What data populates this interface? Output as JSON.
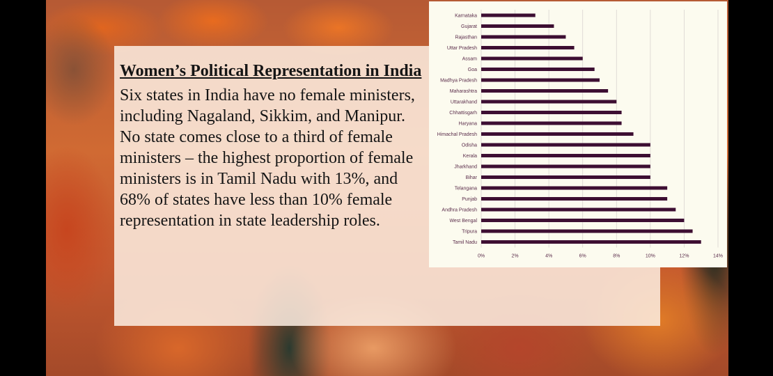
{
  "slide": {
    "title": "Women’s Political Representation in India",
    "body": "Six states in India have no female ministers, including Nagaland, Sikkim, and Manipur. No state comes close to a third of female ministers – the highest proportion of female ministers is in Tamil Nadu with 13%, and 68% of states have less than 10% female representation in state leadership roles."
  },
  "colors": {
    "bar": "#3d0e32",
    "chart_bg": "#fcfbef",
    "grid": "#d9d4d0"
  },
  "chart_data": {
    "type": "bar",
    "orientation": "horizontal",
    "title": "",
    "xlabel": "",
    "ylabel": "",
    "grid": true,
    "xlim": [
      0,
      14
    ],
    "xticks": [
      "0%",
      "2%",
      "4%",
      "6%",
      "8%",
      "10%",
      "12%",
      "14%"
    ],
    "categories": [
      "Karnataka",
      "Gujarat",
      "Rajasthan",
      "Uttar Pradesh",
      "Assam",
      "Goa",
      "Madhya Pradesh",
      "Maharashtra",
      "Uttarakhand",
      "Chhattisgarh",
      "Haryana",
      "Himachal Pradesh",
      "Odisha",
      "Kerala",
      "Jharkhand",
      "Bihar",
      "Telangana",
      "Punjab",
      "Andhra Pradesh",
      "West Bengal",
      "Tripura",
      "Tamil Nadu"
    ],
    "values": [
      3.2,
      4.3,
      5.0,
      5.5,
      6.0,
      6.7,
      7.0,
      7.5,
      8.0,
      8.3,
      8.3,
      9.0,
      10.0,
      10.0,
      10.0,
      10.0,
      11.0,
      11.0,
      11.5,
      12.0,
      12.5,
      13.0
    ]
  }
}
